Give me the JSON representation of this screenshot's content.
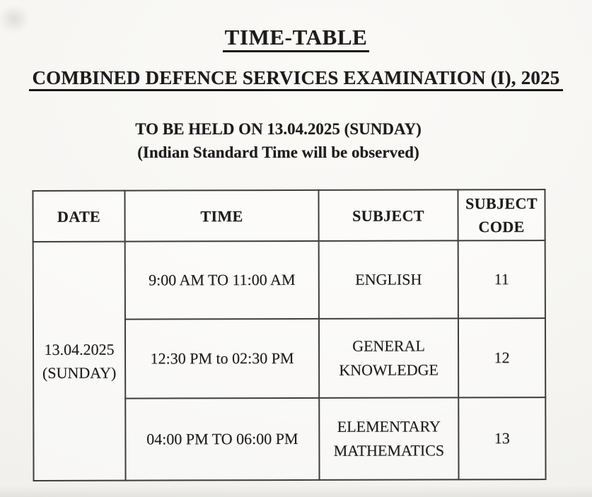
{
  "page": {
    "title": "TIME-TABLE",
    "subtitle": "COMBINED DEFENCE SERVICES EXAMINATION (I), 2025",
    "held_on": "TO BE HELD ON 13.04.2025 (SUNDAY)",
    "note": "(Indian Standard Time will be observed)"
  },
  "table": {
    "headers": [
      "DATE",
      "TIME",
      "SUBJECT",
      "SUBJECT CODE"
    ],
    "date": {
      "line1": "13.04.2025",
      "line2": "(SUNDAY)"
    },
    "rows": [
      {
        "time": "9:00 AM TO 11:00 AM",
        "subject": "ENGLISH",
        "code": "11"
      },
      {
        "time": "12:30 PM to 02:30 PM",
        "subject": "GENERAL KNOWLEDGE",
        "code": "12"
      },
      {
        "time": "04:00 PM TO 06:00 PM",
        "subject": "ELEMENTARY MATHEMATICS",
        "code": "13"
      }
    ]
  },
  "colors": {
    "paper": "#f6f5f2",
    "ink": "#1c1c1c",
    "table_border": "#3e3d3b"
  }
}
